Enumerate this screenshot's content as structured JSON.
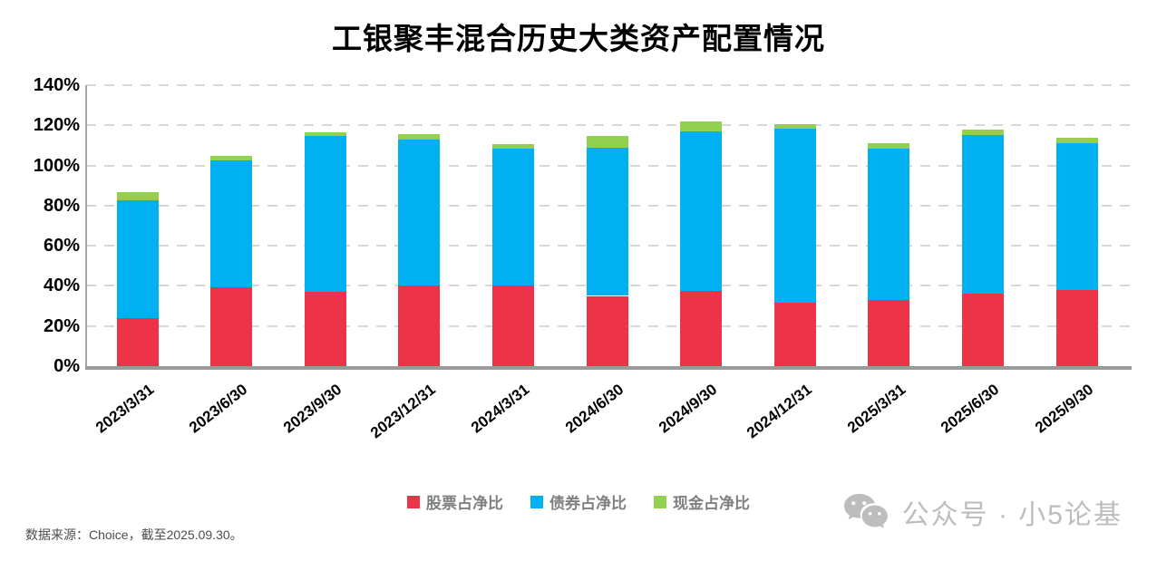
{
  "chart_data": {
    "type": "bar",
    "stacked": true,
    "title": "工银聚丰混合历史大类资产配置情况",
    "categories": [
      "2023/3/31",
      "2023/6/30",
      "2023/9/30",
      "2023/12/31",
      "2024/3/31",
      "2024/6/30",
      "2024/9/30",
      "2024/12/31",
      "2025/3/31",
      "2025/6/30",
      "2025/9/30"
    ],
    "series": [
      {
        "name": "股票占净比",
        "color": "#ED3347",
        "values": [
          24,
          39.5,
          37,
          40,
          40,
          35,
          37.5,
          31.5,
          33,
          36,
          38
        ]
      },
      {
        "name": "债券占净比",
        "color": "#00B0F0",
        "values": [
          58.5,
          63,
          77.5,
          73,
          68.5,
          74,
          79.5,
          87,
          75.5,
          79,
          73
        ]
      },
      {
        "name": "现金占净比",
        "color": "#92D050",
        "values": [
          4,
          2.5,
          2,
          2.5,
          2,
          5.5,
          5,
          2,
          2.5,
          3,
          3
        ]
      }
    ],
    "ylim": [
      0,
      140
    ],
    "ytick_step": 20,
    "ytick_labels": [
      "0%",
      "20%",
      "40%",
      "60%",
      "80%",
      "100%",
      "120%",
      "140%"
    ],
    "grid": "horizontal-dashed",
    "legend_position": "bottom"
  },
  "footer": {
    "source_note": "数据来源：Choice，截至2025.09.30。",
    "watermark": {
      "icon": "wechat-icon",
      "text": "公众号 · 小5论基"
    }
  },
  "colors": {
    "background": "#FFFFFF",
    "title_text": "#000000",
    "axis_line": "#A6A6A6",
    "gridline": "#D8D8D8",
    "tick_text": "#000000",
    "legend_text": "#7F7F7F",
    "source_text": "#4D4D4D",
    "watermark": "#BDBDBD"
  }
}
